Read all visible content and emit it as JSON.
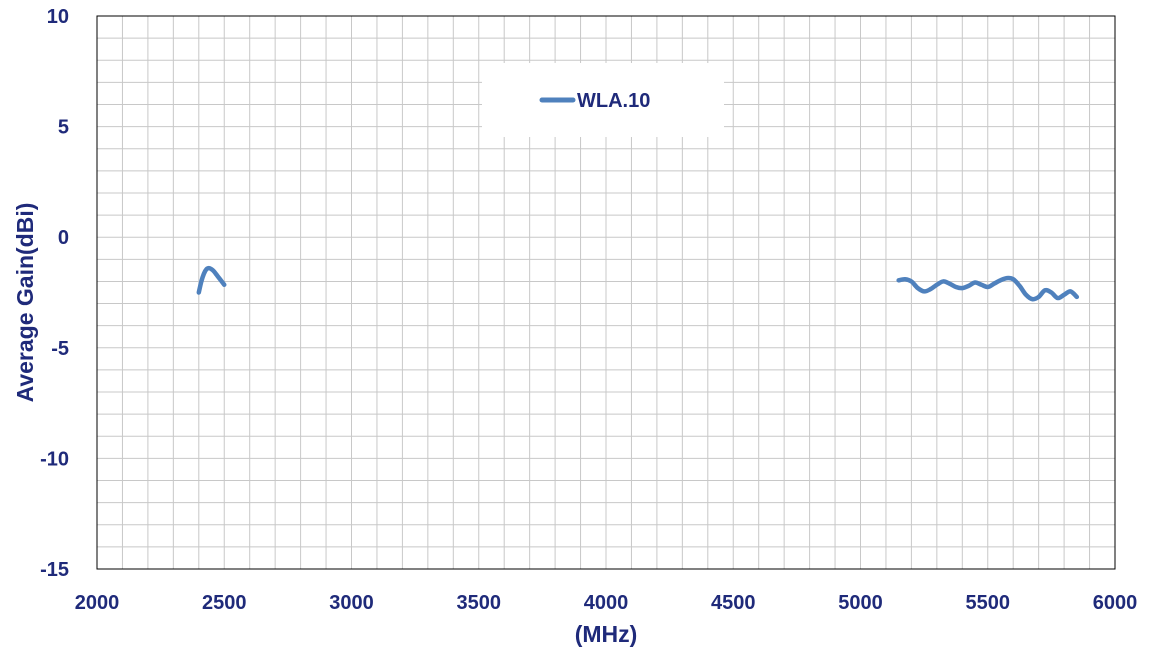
{
  "chart_data": {
    "type": "line",
    "title": "",
    "xlabel": "(MHz)",
    "ylabel": "Average Gain(dBi)",
    "xlim": [
      2000,
      6000
    ],
    "ylim": [
      -15,
      10
    ],
    "x_major_ticks": [
      2000,
      2500,
      3000,
      3500,
      4000,
      4500,
      5000,
      5500,
      6000
    ],
    "y_major_ticks": [
      10,
      5,
      0,
      -5,
      -10,
      -15
    ],
    "grid": true,
    "legend": {
      "placement": "top-center",
      "entries": [
        "WLA.10"
      ]
    },
    "colors": {
      "series": "#4f81bd",
      "text": "#1f2a7a",
      "grid": "#c8c8c8",
      "axis": "#000000"
    },
    "series": [
      {
        "name": "WLA.10",
        "segments": [
          {
            "x": [
              2400,
              2410,
              2420,
              2430,
              2440,
              2450,
              2460,
              2470,
              2480,
              2490,
              2500
            ],
            "y": [
              -2.5,
              -2.0,
              -1.65,
              -1.45,
              -1.4,
              -1.45,
              -1.55,
              -1.7,
              -1.85,
              -2.0,
              -2.15
            ]
          },
          {
            "x": [
              5150,
              5175,
              5200,
              5225,
              5250,
              5275,
              5300,
              5325,
              5350,
              5375,
              5400,
              5425,
              5450,
              5475,
              5500,
              5525,
              5550,
              5575,
              5600,
              5625,
              5650,
              5675,
              5700,
              5725,
              5750,
              5775,
              5800,
              5825,
              5850
            ],
            "y": [
              -1.95,
              -1.9,
              -2.0,
              -2.3,
              -2.45,
              -2.35,
              -2.15,
              -2.0,
              -2.1,
              -2.25,
              -2.3,
              -2.2,
              -2.05,
              -2.15,
              -2.25,
              -2.1,
              -1.95,
              -1.85,
              -1.9,
              -2.2,
              -2.6,
              -2.8,
              -2.7,
              -2.4,
              -2.5,
              -2.75,
              -2.6,
              -2.45,
              -2.7
            ]
          }
        ]
      }
    ]
  }
}
